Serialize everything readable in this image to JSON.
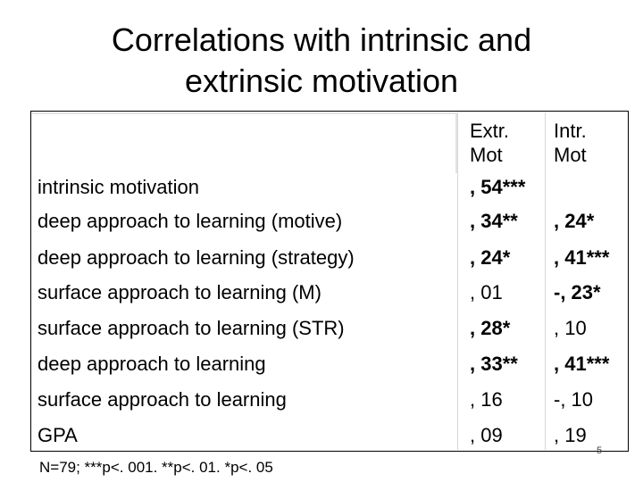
{
  "title_line1": "Correlations with intrinsic and",
  "title_line2": "extrinsic motivation",
  "columns": {
    "extr": [
      "Extr.",
      "Mot"
    ],
    "intr": [
      "Intr.",
      "Mot"
    ]
  },
  "rows": [
    {
      "label": "intrinsic motivation",
      "extr": ", 54***",
      "intr": ""
    },
    {
      "label": "deep approach to learning (motive)",
      "extr": ", 34**",
      "intr": ", 24*"
    },
    {
      "label": "deep approach to learning (strategy)",
      "extr": ", 24*",
      "intr": ", 41***"
    },
    {
      "label": "surface approach to learning (M)",
      "extr": ", 01",
      "intr": "-, 23*"
    },
    {
      "label": "surface approach to learning (STR)",
      "extr": ", 28*",
      "intr": ", 10"
    },
    {
      "label": "deep approach to learning",
      "extr": ", 33**",
      "intr": ", 41***"
    },
    {
      "label": "surface approach to learning",
      "extr": ", 16",
      "intr": "-, 10"
    },
    {
      "label": "GPA",
      "extr": ", 09",
      "intr": ", 19"
    }
  ],
  "note": "N=79; ***p<. 001. **p<. 01. *p<. 05",
  "page_number": "5"
}
